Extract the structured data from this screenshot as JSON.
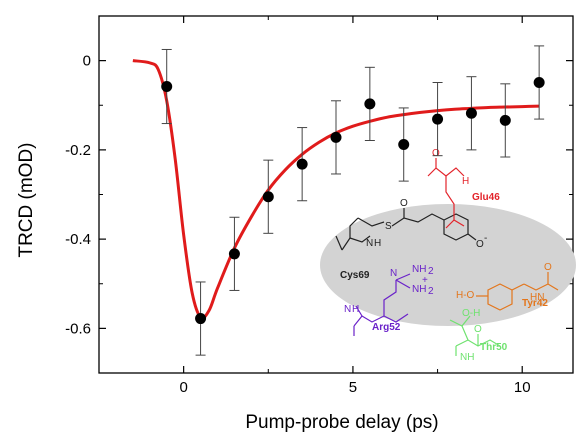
{
  "chart_data": {
    "type": "scatter",
    "xlabel": "Pump-probe delay (ps)",
    "ylabel": "TRCD (mOD)",
    "xlim": [
      -2.5,
      11.5
    ],
    "ylim": [
      -0.7,
      0.1
    ],
    "x_ticks": [
      0,
      5,
      10
    ],
    "x_tick_labels": [
      "0",
      "5",
      "10"
    ],
    "y_ticks": [
      0,
      -0.2,
      -0.4,
      -0.6
    ],
    "y_tick_labels": [
      "0",
      "-0.2",
      "-0.4",
      "-0.6"
    ],
    "grid": false,
    "legend": "none",
    "points": [
      {
        "x": -0.5,
        "y": -0.058,
        "err": 0.083
      },
      {
        "x": 0.5,
        "y": -0.578,
        "err": 0.082
      },
      {
        "x": 1.5,
        "y": -0.433,
        "err": 0.082
      },
      {
        "x": 2.5,
        "y": -0.305,
        "err": 0.082
      },
      {
        "x": 3.5,
        "y": -0.232,
        "err": 0.082
      },
      {
        "x": 4.5,
        "y": -0.172,
        "err": 0.082
      },
      {
        "x": 5.5,
        "y": -0.097,
        "err": 0.082
      },
      {
        "x": 6.5,
        "y": -0.188,
        "err": 0.082
      },
      {
        "x": 7.5,
        "y": -0.131,
        "err": 0.082
      },
      {
        "x": 8.5,
        "y": -0.118,
        "err": 0.082
      },
      {
        "x": 9.5,
        "y": -0.134,
        "err": 0.082
      },
      {
        "x": 10.5,
        "y": -0.049,
        "err": 0.082
      }
    ],
    "fit": {
      "color": "#e01b1b",
      "x": [
        -1.5,
        -1.0,
        -0.75,
        -0.5,
        -0.25,
        0.0,
        0.25,
        0.5,
        0.75,
        1.0,
        1.5,
        2.0,
        2.5,
        3.0,
        3.5,
        4.0,
        4.5,
        5.0,
        5.5,
        6.0,
        6.5,
        7.0,
        7.5,
        8.0,
        8.5,
        9.0,
        9.5,
        10.0,
        10.5
      ],
      "y": [
        0.0,
        -0.005,
        -0.02,
        -0.09,
        -0.22,
        -0.39,
        -0.52,
        -0.575,
        -0.56,
        -0.51,
        -0.42,
        -0.35,
        -0.29,
        -0.245,
        -0.21,
        -0.183,
        -0.162,
        -0.147,
        -0.136,
        -0.127,
        -0.121,
        -0.116,
        -0.112,
        -0.109,
        -0.107,
        -0.105,
        -0.104,
        -0.103,
        -0.102
      ]
    },
    "point_color": "#000000"
  },
  "inset": {
    "labels": {
      "glu": "Glu46",
      "cys": "Cys69",
      "tyr": "Tyr42",
      "arg": "Arg52",
      "thr": "Thr50"
    },
    "atoms": {
      "n": "N",
      "h": "H",
      "nh": "NH",
      "hn": "HN",
      "nh2": "NH",
      "s": "S",
      "o": "O",
      "ominus": "O",
      "ho": "H-O",
      "oh": "O-H",
      "h2": "2",
      "plus": "+",
      "minus": "-"
    },
    "colors": {
      "glu": "#e3242b",
      "cys": "#222222",
      "tyr": "#e3761c",
      "arg": "#6a22c9",
      "thr": "#6fe26f",
      "ellipse": "#d3d3d3"
    }
  }
}
